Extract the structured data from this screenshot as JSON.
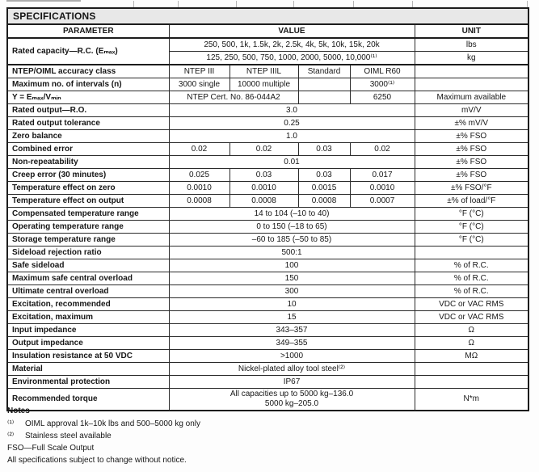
{
  "title": "SPECIFICATIONS",
  "table": {
    "headers": {
      "parameter": "PARAMETER",
      "value": "VALUE",
      "unit": "UNIT"
    },
    "rows": [
      {
        "parameter": "Rated capacity—R.C. (Eₘₐₓ)",
        "param_rowspan": 2,
        "cells": [
          {
            "span": 4,
            "text": "250, 500, 1k, 1.5k, 2k, 2.5k, 4k, 5k, 10k, 15k, 20k"
          }
        ],
        "unit": "lbs"
      },
      {
        "param_skip": true,
        "cells": [
          {
            "span": 4,
            "text": "125, 250, 500, 750, 1000, 2000, 5000, 10,000⁽¹⁾"
          }
        ],
        "unit": "kg"
      },
      {
        "parameter": "NTEP/OIML accuracy class",
        "thick_top": true,
        "cells": [
          {
            "span": 1,
            "text": "NTEP III"
          },
          {
            "span": 1,
            "text": "NTEP IIIL"
          },
          {
            "span": 1,
            "text": "Standard"
          },
          {
            "span": 1,
            "text": "OIML R60"
          }
        ],
        "unit": ""
      },
      {
        "parameter": "Maximum no. of intervals (n)",
        "cells": [
          {
            "span": 1,
            "text": "3000 single"
          },
          {
            "span": 1,
            "text": "10000 multiple"
          },
          {
            "span": 1,
            "text": ""
          },
          {
            "span": 1,
            "text": "3000⁽¹⁾"
          }
        ],
        "unit": ""
      },
      {
        "parameter": "Y = Eₘₐₓ/Vₘᵢₙ",
        "cells": [
          {
            "span": 2,
            "text": "NTEP Cert. No. 86-044A2"
          },
          {
            "span": 1,
            "text": ""
          },
          {
            "span": 1,
            "text": "6250"
          }
        ],
        "unit": "Maximum available"
      },
      {
        "parameter": "Rated output—R.O.",
        "cells": [
          {
            "span": 4,
            "text": "3.0"
          }
        ],
        "unit": "mV/V"
      },
      {
        "parameter": "Rated output tolerance",
        "cells": [
          {
            "span": 4,
            "text": "0.25"
          }
        ],
        "unit": "±% mV/V"
      },
      {
        "parameter": "Zero balance",
        "cells": [
          {
            "span": 4,
            "text": "1.0"
          }
        ],
        "unit": "±% FSO"
      },
      {
        "parameter": "Combined error",
        "cells": [
          {
            "span": 1,
            "text": "0.02"
          },
          {
            "span": 1,
            "text": "0.02"
          },
          {
            "span": 1,
            "text": "0.03"
          },
          {
            "span": 1,
            "text": "0.02"
          }
        ],
        "unit": "±% FSO"
      },
      {
        "parameter": "Non-repeatability",
        "cells": [
          {
            "span": 4,
            "text": "0.01"
          }
        ],
        "unit": "±% FSO"
      },
      {
        "parameter": "Creep error (30 minutes)",
        "cells": [
          {
            "span": 1,
            "text": "0.025"
          },
          {
            "span": 1,
            "text": "0.03"
          },
          {
            "span": 1,
            "text": "0.03"
          },
          {
            "span": 1,
            "text": "0.017"
          }
        ],
        "unit": "±% FSO"
      },
      {
        "parameter": "Temperature effect on zero",
        "cells": [
          {
            "span": 1,
            "text": "0.0010"
          },
          {
            "span": 1,
            "text": "0.0010"
          },
          {
            "span": 1,
            "text": "0.0015"
          },
          {
            "span": 1,
            "text": "0.0010"
          }
        ],
        "unit": "±% FSO/°F"
      },
      {
        "parameter": "Temperature effect on output",
        "cells": [
          {
            "span": 1,
            "text": "0.0008"
          },
          {
            "span": 1,
            "text": "0.0008"
          },
          {
            "span": 1,
            "text": "0.0008"
          },
          {
            "span": 1,
            "text": "0.0007"
          }
        ],
        "unit": "±% of load/°F"
      },
      {
        "parameter": "Compensated temperature range",
        "cells": [
          {
            "span": 4,
            "text": "14 to 104 (–10 to 40)"
          }
        ],
        "unit": "°F (°C)"
      },
      {
        "parameter": "Operating temperature range",
        "cells": [
          {
            "span": 4,
            "text": "0 to 150 (–18 to 65)"
          }
        ],
        "unit": "°F (°C)"
      },
      {
        "parameter": "Storage temperature range",
        "cells": [
          {
            "span": 4,
            "text": "–60 to 185 (–50 to 85)"
          }
        ],
        "unit": "°F (°C)"
      },
      {
        "parameter": "Sideload rejection ratio",
        "cells": [
          {
            "span": 4,
            "text": "500:1"
          }
        ],
        "unit": ""
      },
      {
        "parameter": "Safe sideload",
        "cells": [
          {
            "span": 4,
            "text": "100"
          }
        ],
        "unit": "% of R.C."
      },
      {
        "parameter": "Maximum safe central overload",
        "cells": [
          {
            "span": 4,
            "text": "150"
          }
        ],
        "unit": "% of R.C."
      },
      {
        "parameter": "Ultimate central overload",
        "cells": [
          {
            "span": 4,
            "text": "300"
          }
        ],
        "unit": "% of R.C."
      },
      {
        "parameter": "Excitation, recommended",
        "cells": [
          {
            "span": 4,
            "text": "10"
          }
        ],
        "unit": "VDC or VAC RMS"
      },
      {
        "parameter": "Excitation, maximum",
        "cells": [
          {
            "span": 4,
            "text": "15"
          }
        ],
        "unit": "VDC or VAC RMS"
      },
      {
        "parameter": "Input impedance",
        "cells": [
          {
            "span": 4,
            "text": "343–357"
          }
        ],
        "unit": "Ω"
      },
      {
        "parameter": "Output impedance",
        "cells": [
          {
            "span": 4,
            "text": "349–355"
          }
        ],
        "unit": "Ω"
      },
      {
        "parameter": "Insulation resistance at 50 VDC",
        "cells": [
          {
            "span": 4,
            "text": ">1000"
          }
        ],
        "unit": "MΩ"
      },
      {
        "parameter": "Material",
        "cells": [
          {
            "span": 4,
            "text": "Nickel-plated alloy tool steel⁽²⁾"
          }
        ],
        "unit": ""
      },
      {
        "parameter": "Environmental protection",
        "cells": [
          {
            "span": 4,
            "text": "IP67"
          }
        ],
        "unit": ""
      },
      {
        "parameter": "Recommended torque",
        "cells": [
          {
            "span": 4,
            "text": "All capacities up to 5000 kg–136.0\n5000 kg–205.0"
          }
        ],
        "unit": "N*m"
      }
    ]
  },
  "notes": {
    "heading": "Notes",
    "items": [
      {
        "marker": "⁽¹⁾",
        "text": "OIML approval 1k–10k lbs and 500–5000 kg only"
      },
      {
        "marker": "⁽²⁾",
        "text": "Stainless steel available"
      }
    ],
    "fso_line": "FSO—Full Scale Output",
    "disclaimer": "All specifications subject to change without notice."
  }
}
